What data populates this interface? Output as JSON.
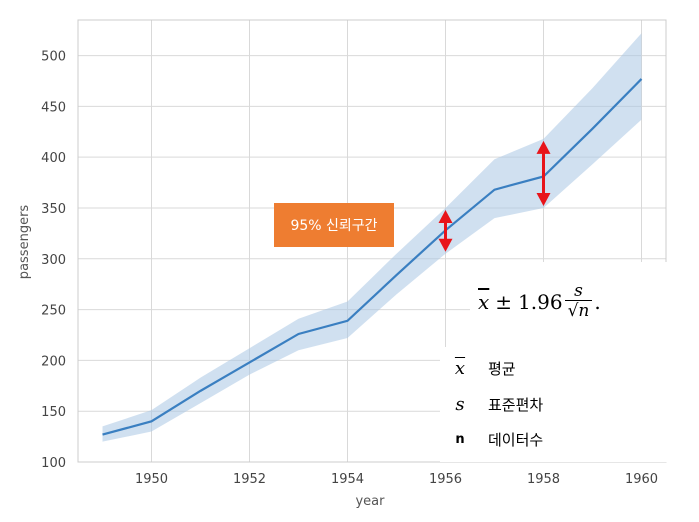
{
  "chart_data": {
    "type": "line",
    "title": "",
    "xlabel": "year",
    "ylabel": "passengers",
    "x": [
      1949,
      1950,
      1951,
      1952,
      1953,
      1954,
      1955,
      1956,
      1957,
      1958,
      1959,
      1960
    ],
    "series": [
      {
        "values": [
          127,
          140,
          170,
          198,
          226,
          239,
          284,
          328,
          368,
          381,
          428,
          477
        ],
        "ci_lower": [
          120,
          130,
          158,
          186,
          210,
          222,
          265,
          305,
          340,
          350,
          393,
          437
        ],
        "ci_upper": [
          135,
          151,
          183,
          212,
          241,
          258,
          305,
          350,
          398,
          418,
          468,
          522
        ],
        "color": "#3a7fc1",
        "band_color": "#a9c7e3"
      }
    ],
    "xticks": [
      "1950",
      "1952",
      "1954",
      "1956",
      "1958",
      "1960"
    ],
    "yticks": [
      "100",
      "150",
      "200",
      "250",
      "300",
      "350",
      "400",
      "450",
      "500"
    ],
    "xlim": [
      1948.5,
      1960.5
    ],
    "ylim": [
      100,
      535
    ],
    "grid": true,
    "annotations": {
      "callout_label": "95% 신뢰구간",
      "arrow_years": [
        1956,
        1958
      ],
      "arrow_color": "#e8141a",
      "callout_color": "#ee7d31"
    }
  },
  "formula": {
    "mean_symbol": "x",
    "pm": "±",
    "constant": "1.96",
    "numerator": "s",
    "sqrt_symbol": "√",
    "denominator_var": "n",
    "period": "."
  },
  "legend": {
    "items": [
      {
        "symbol": "x",
        "label": "평균"
      },
      {
        "symbol": "s",
        "label": "표준편차"
      },
      {
        "symbol": "n",
        "label": "데이터수"
      }
    ]
  }
}
